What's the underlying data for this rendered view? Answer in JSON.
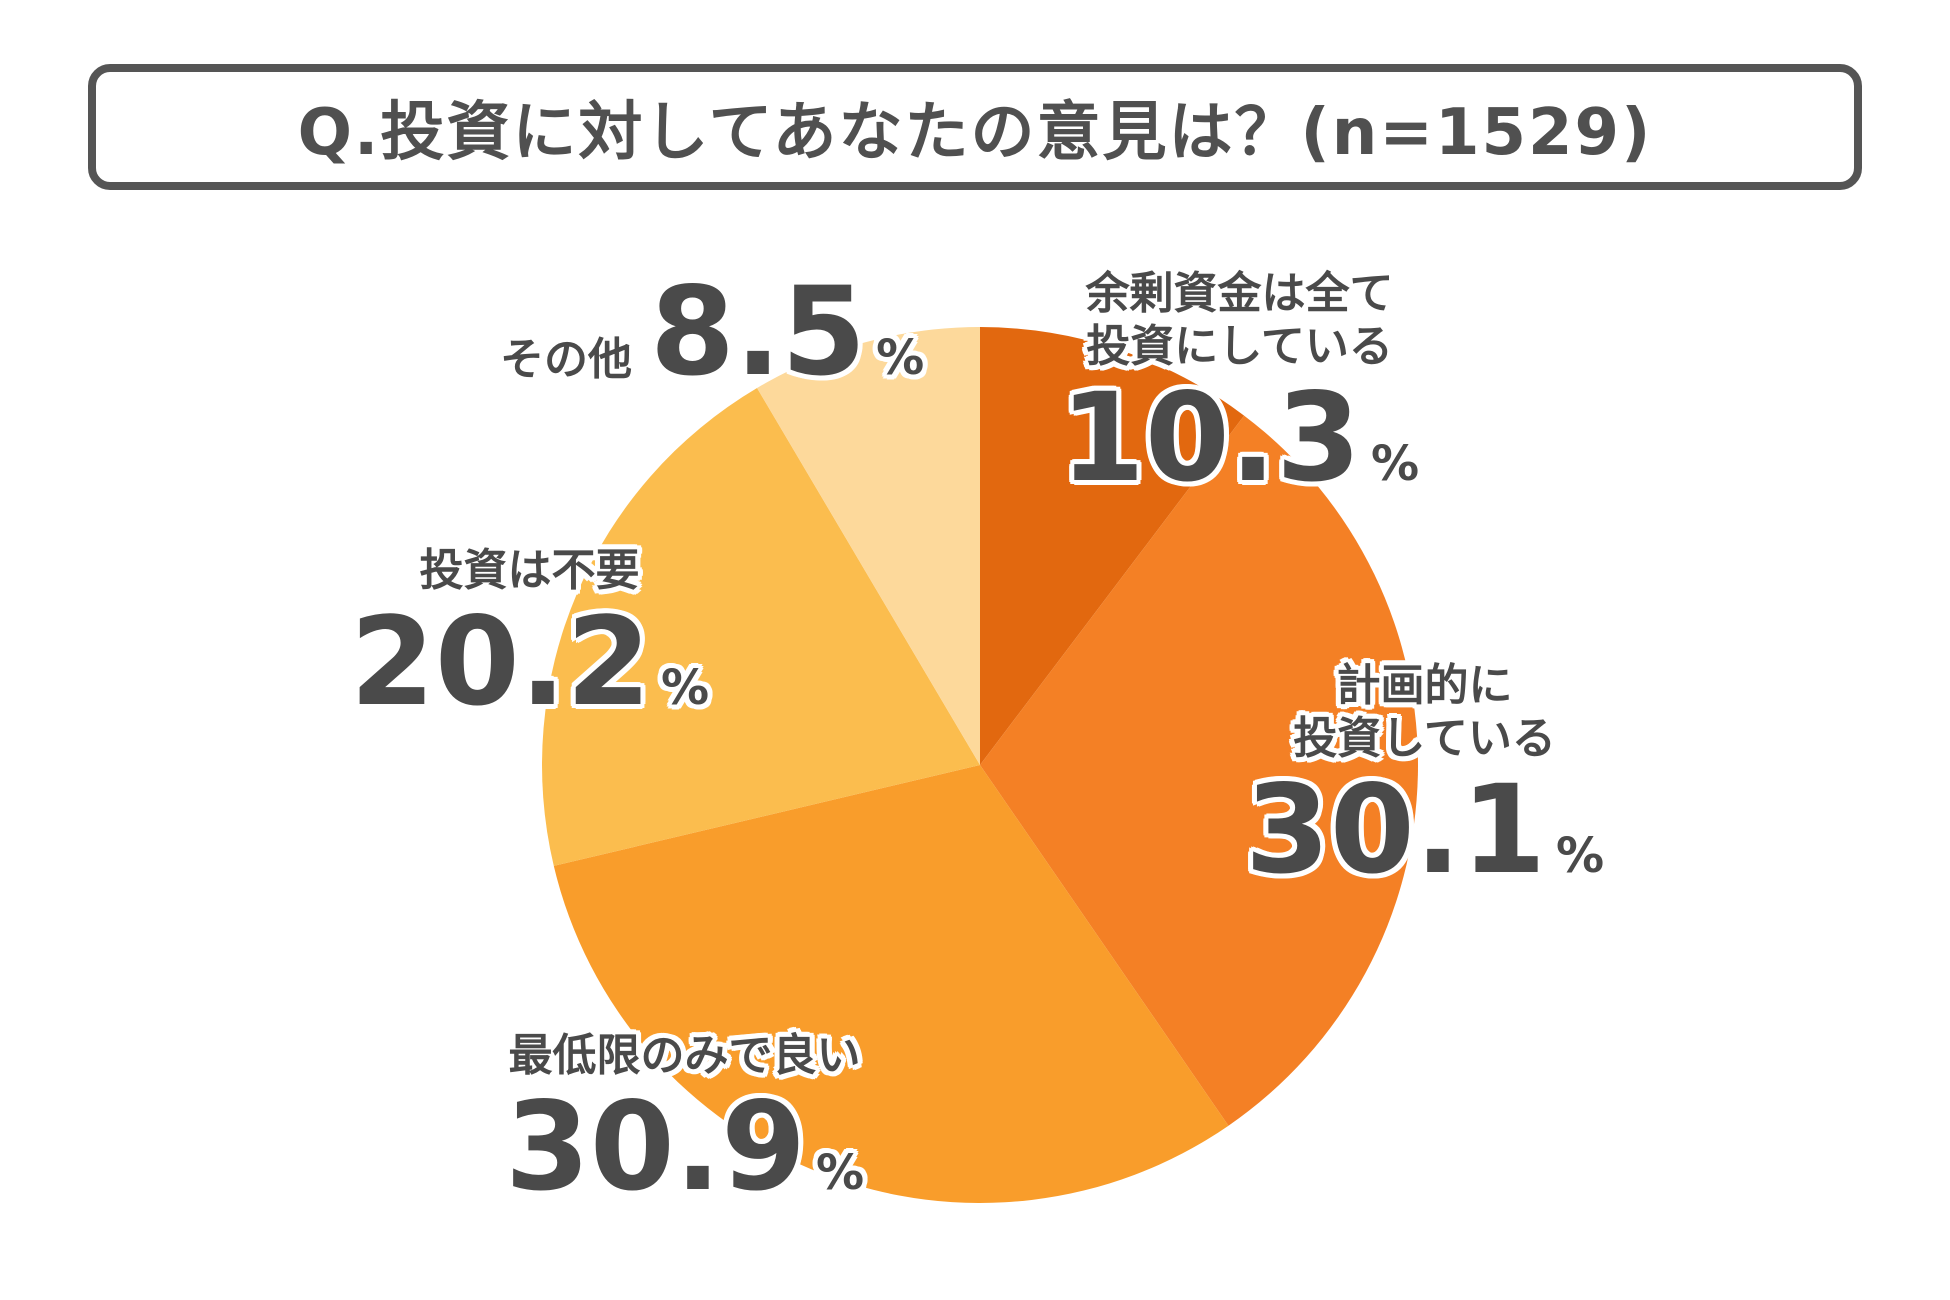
{
  "title": "Q.投資に対してあなたの意見は？(n=1529)",
  "chart_data": {
    "type": "pie",
    "title": "Q.投資に対してあなたの意見は？(n=1529)",
    "start_angle": "12 o'clock",
    "direction": "clockwise",
    "unit": "%",
    "slices": [
      {
        "label_lines": [
          "余剰資金は全て",
          "投資にしている"
        ],
        "value": 10.3,
        "value_text": "10.3",
        "color": "#E2680F"
      },
      {
        "label_lines": [
          "計画的に",
          "投資している"
        ],
        "value": 30.1,
        "value_text": "30.1",
        "color": "#F48025"
      },
      {
        "label_lines": [
          "最低限のみで良い"
        ],
        "value": 30.9,
        "value_text": "30.9",
        "color": "#F99D2B"
      },
      {
        "label_lines": [
          "投資は不要"
        ],
        "value": 20.2,
        "value_text": "20.2",
        "color": "#FBBD4E"
      },
      {
        "label_lines": [
          "その他"
        ],
        "value": 8.5,
        "value_text": "8.5",
        "color": "#FDD99B"
      }
    ]
  }
}
